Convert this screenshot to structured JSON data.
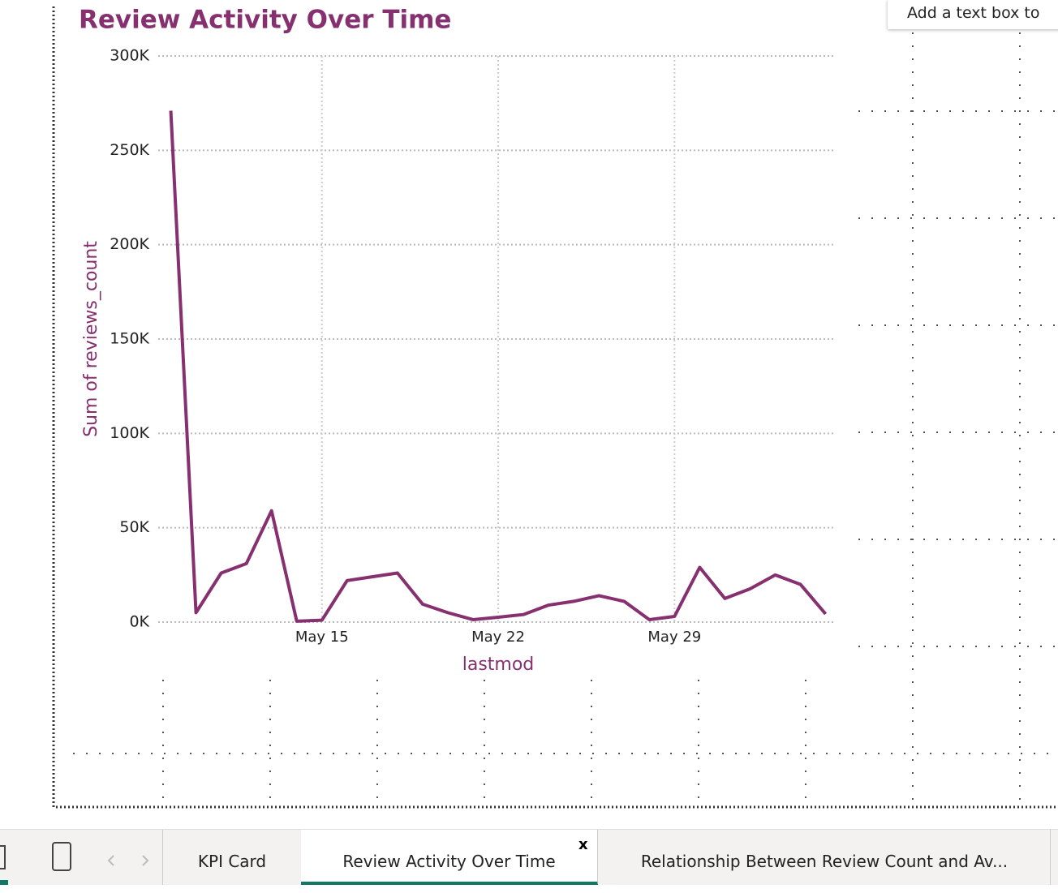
{
  "chart_data": {
    "type": "line",
    "title": "Review Activity Over Time",
    "x_label": "lastmod",
    "y_label": "Sum of reviews_count",
    "x": [
      9,
      10,
      11,
      12,
      13,
      14,
      15,
      16,
      17,
      18,
      19,
      20,
      21,
      22,
      23,
      24,
      25,
      26,
      27,
      28,
      29,
      30,
      31,
      32,
      33,
      34,
      35
    ],
    "series": [
      {
        "name": "reviews_count",
        "color": "#86306f",
        "values": [
          271000,
          5000,
          26000,
          31000,
          59000,
          500,
          1000,
          22000,
          24000,
          26000,
          9500,
          5000,
          1300,
          2600,
          4000,
          9000,
          11000,
          14000,
          11000,
          1300,
          3000,
          29000,
          12500,
          17600,
          25000,
          20000,
          4300
        ]
      }
    ],
    "xlim": [
      8.5,
      35.4
    ],
    "xticks": [
      {
        "value": 15,
        "label": "May 15"
      },
      {
        "value": 22,
        "label": "May 22"
      },
      {
        "value": 29,
        "label": "May 29"
      }
    ],
    "ylim": [
      0,
      300000
    ],
    "yticks": [
      {
        "value": 0,
        "label": "0K"
      },
      {
        "value": 50000,
        "label": "50K"
      },
      {
        "value": 100000,
        "label": "100K"
      },
      {
        "value": 150000,
        "label": "150K"
      },
      {
        "value": 200000,
        "label": "200K"
      },
      {
        "value": 250000,
        "label": "250K"
      },
      {
        "value": 300000,
        "label": "300K"
      }
    ],
    "grid": true
  },
  "ui": {
    "tooltip": "Add a text box to",
    "close": "x",
    "tabs": [
      "KPI Card",
      "Review Activity Over Time",
      "Relationship Between Review Count and Av..."
    ],
    "active_tab": 1
  }
}
